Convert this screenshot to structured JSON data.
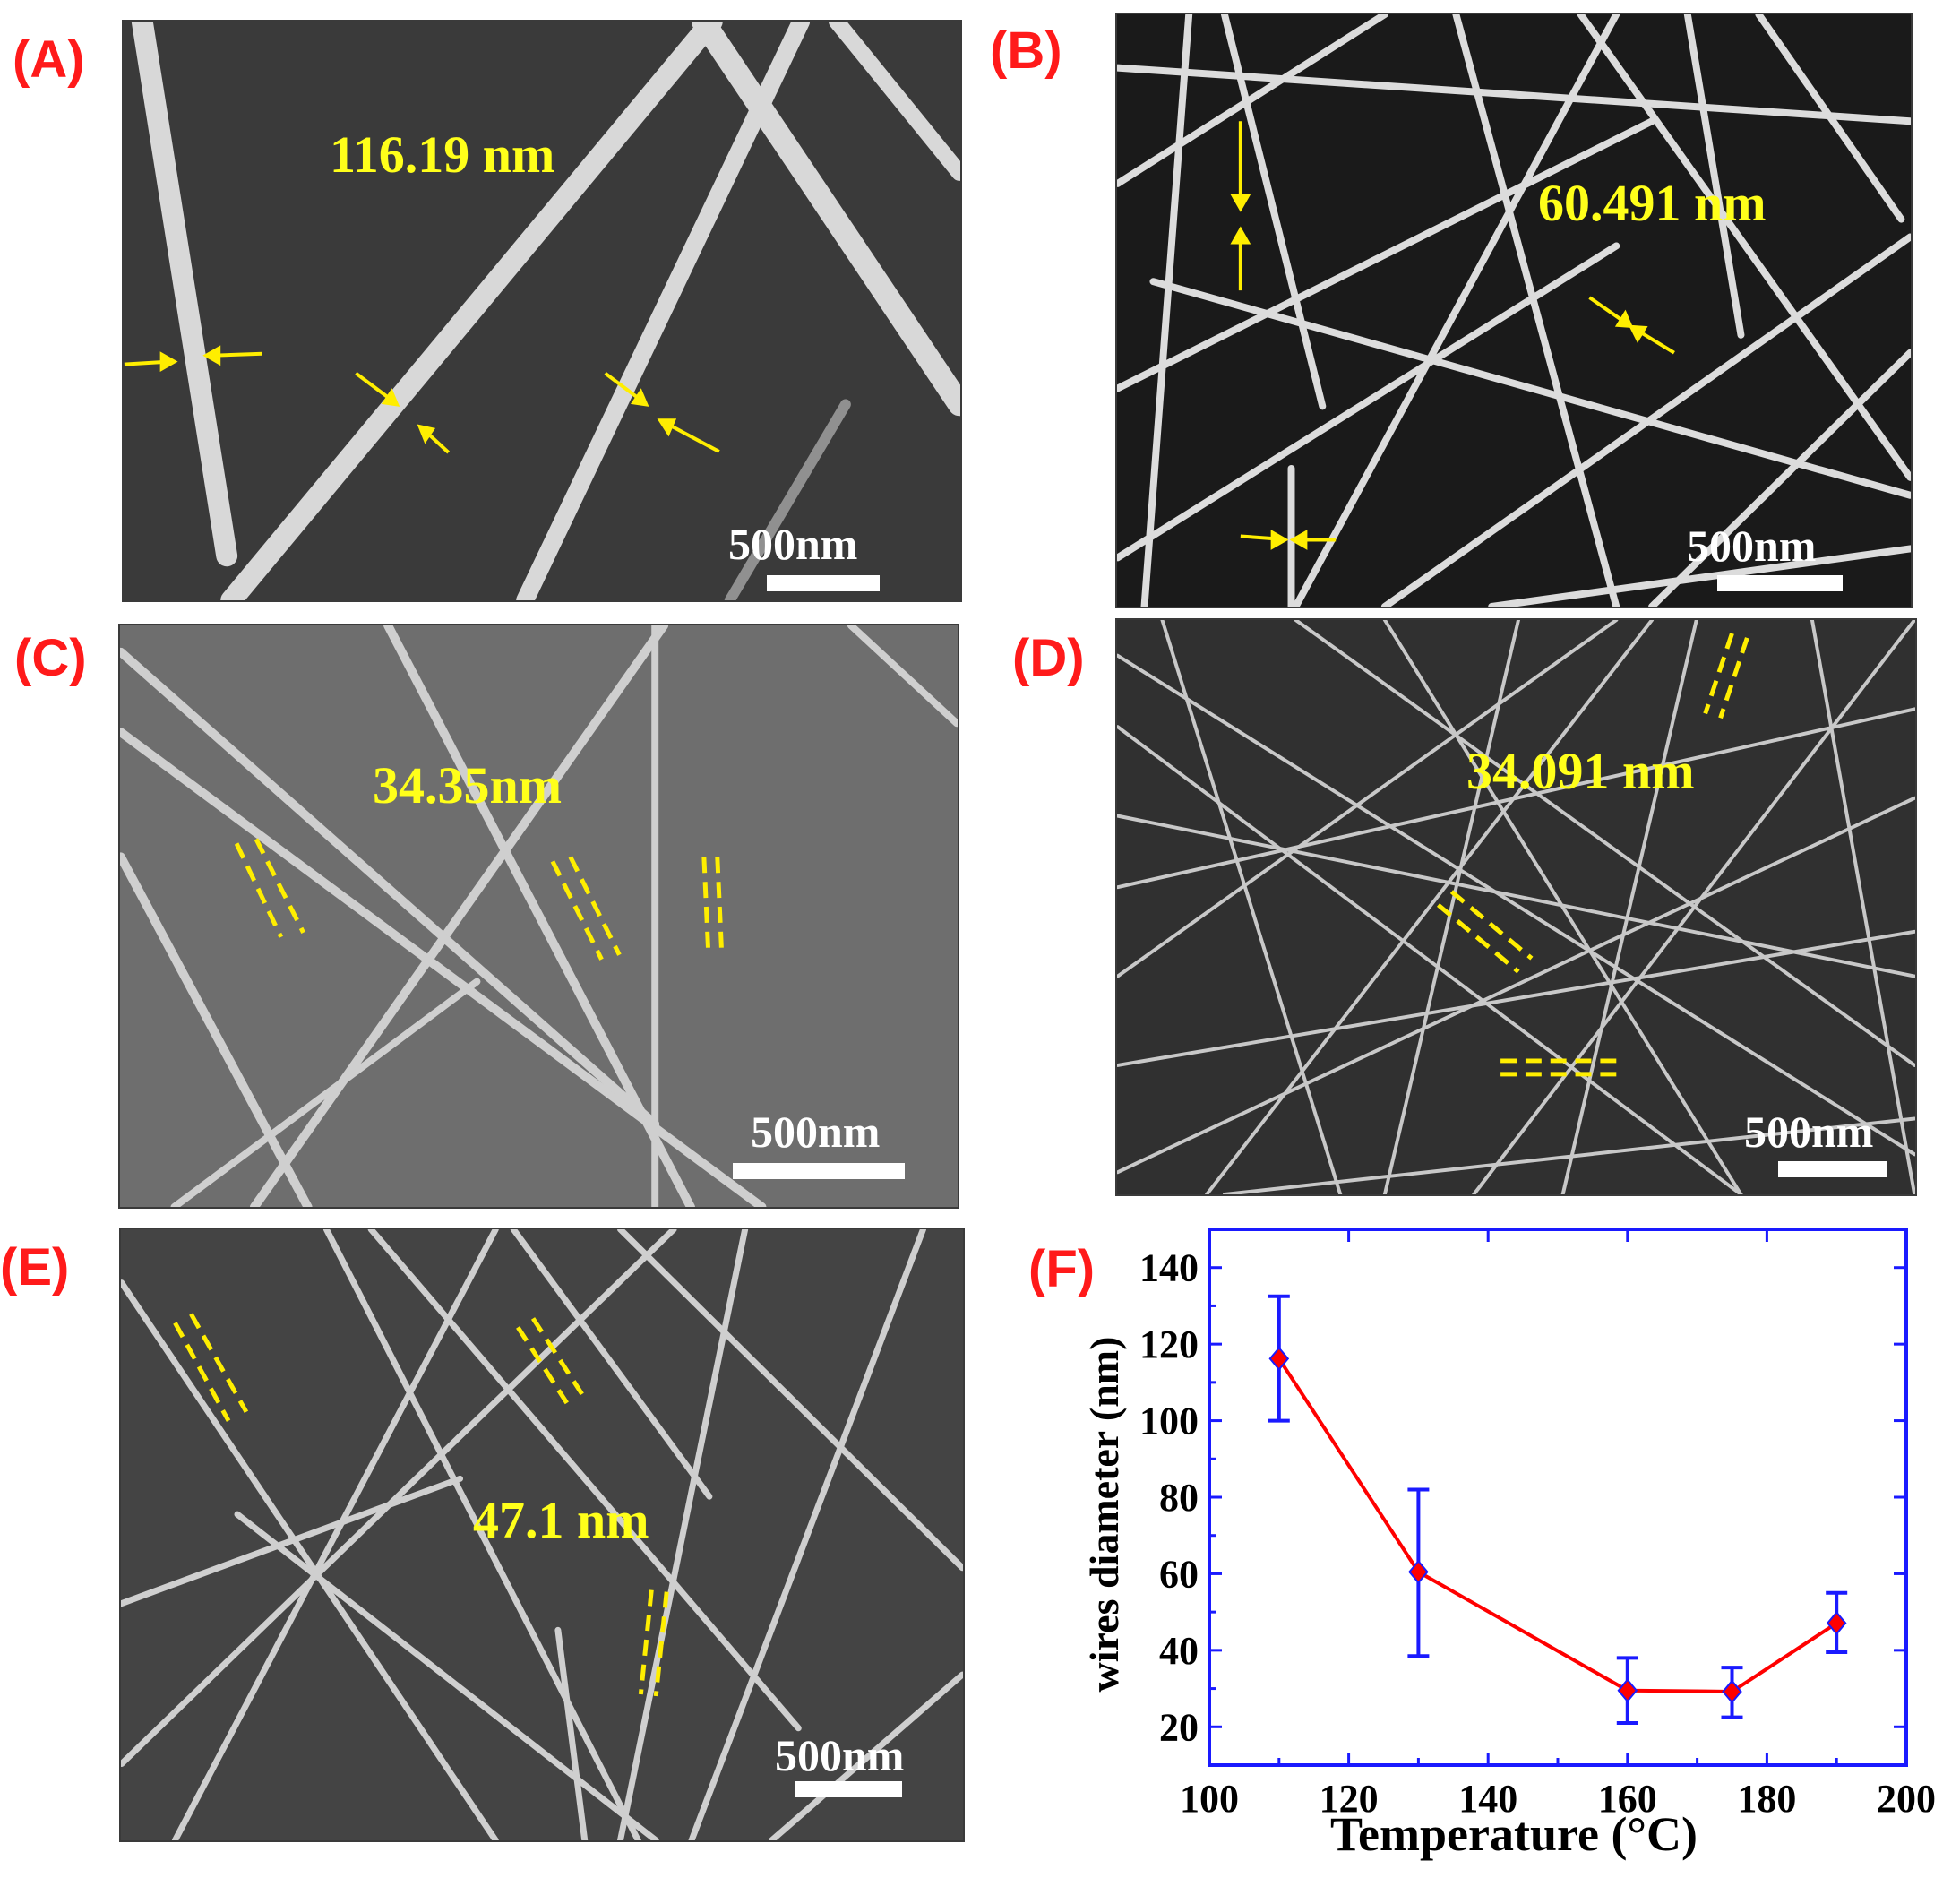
{
  "panels": [
    {
      "label": "(A)",
      "measurement": "116.19 nm",
      "scale_bar": "500nm"
    },
    {
      "label": "(B)",
      "measurement": "60.491 nm",
      "scale_bar": "500nm"
    },
    {
      "label": "(C)",
      "measurement": "34.35nm",
      "scale_bar": "500nm"
    },
    {
      "label": "(D)",
      "measurement": "34.091 nm",
      "scale_bar": "500nm"
    },
    {
      "label": "(E)",
      "measurement": "47.1 nm",
      "scale_bar": "500nm"
    },
    {
      "label": "(F)"
    }
  ],
  "colors": {
    "panel_label": "#ff1a1a",
    "annotation": "#ffff1a",
    "scale_bar": "#ffffff",
    "axis_frame": "#1a1aff",
    "line": "#ff0000",
    "marker": "#ff0000",
    "error_bar": "#1a1aff"
  },
  "chart_data": {
    "type": "line",
    "title": "",
    "xlabel": "Temperature (°C)",
    "ylabel": "wires diameter (nm)",
    "xlim": [
      100,
      200
    ],
    "ylim": [
      10,
      150
    ],
    "xticks": [
      100,
      120,
      140,
      160,
      180,
      200
    ],
    "yticks": [
      20,
      40,
      60,
      80,
      100,
      120,
      140
    ],
    "x": [
      110,
      130,
      160,
      175,
      190
    ],
    "series": [
      {
        "values": [
          116.19,
          60.491,
          29.5,
          29.2,
          47.1
        ],
        "error_low": [
          100,
          38.5,
          21,
          22.5,
          39.5
        ],
        "error_high": [
          132.5,
          82,
          38,
          35.5,
          55
        ]
      }
    ],
    "grid": false,
    "legend": false
  }
}
